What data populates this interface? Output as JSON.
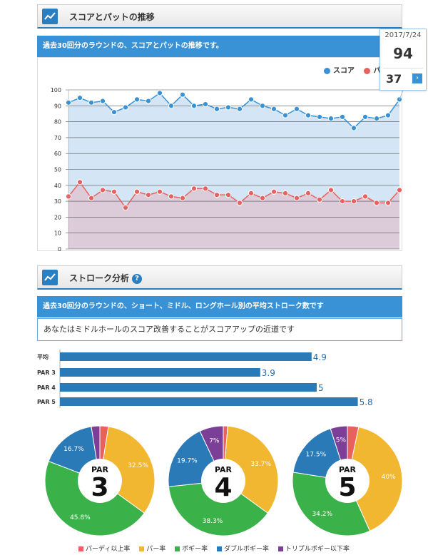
{
  "section1": {
    "title": "スコアとパットの推移",
    "description": "過去30回分のラウンドの、スコアとパットの推移です。"
  },
  "section2": {
    "title": "ストローク分析",
    "help": "?",
    "description": "過去30回分のラウンドの、ショート、ミドル、ロングホール別の平均ストローク数です",
    "message": "あなたはミドルホールのスコア改善することがスコアアップの近道です"
  },
  "tooltip": {
    "date": "2017/7/24",
    "score": "94",
    "putt": "37",
    "arrow": "›"
  },
  "colors": {
    "score": "#3a92d6",
    "putt": "#e8615f",
    "bar": "#2a7ab8",
    "birdie": "#e8615f",
    "par": "#f2b730",
    "bogey": "#3bb14a",
    "double": "#2a7ab8",
    "triple": "#7b3f98"
  },
  "pie_legend": [
    "パーディ以上率",
    "パー率",
    "ボギー率",
    "ダブルボギー率",
    "トリプルボギー以下率"
  ],
  "chart_data": [
    {
      "type": "line",
      "legend": [
        "スコア",
        "パ"
      ],
      "yticks": [
        "0",
        "10",
        "20",
        "30",
        "40",
        "50",
        "60",
        "70",
        "80",
        "90",
        "100"
      ],
      "ylim": [
        0,
        100
      ],
      "series": [
        {
          "name": "スコア",
          "values": [
            92,
            95,
            92,
            93,
            86,
            89,
            94,
            93,
            98,
            90,
            97,
            90,
            91,
            88,
            89,
            88,
            94,
            90,
            88,
            84,
            88,
            84,
            83,
            82,
            83,
            76,
            83,
            82,
            84,
            94
          ]
        },
        {
          "name": "パ",
          "values": [
            33,
            42,
            32,
            37,
            36,
            26,
            36,
            34,
            36,
            33,
            32,
            38,
            38,
            34,
            34,
            29,
            35,
            32,
            36,
            35,
            32,
            35,
            31,
            37,
            30,
            30,
            33,
            29,
            29,
            37
          ]
        }
      ]
    },
    {
      "type": "bar",
      "categories": [
        "平均",
        "PAR 3",
        "PAR 4",
        "PAR 5"
      ],
      "values": [
        4.9,
        3.9,
        5,
        5.8
      ],
      "labels": [
        "4.9",
        "3.9",
        "5",
        "5.8"
      ],
      "xlim": [
        0,
        6
      ]
    },
    {
      "type": "pie",
      "center_top": "PAR",
      "center_big": "3",
      "values": [
        2.5,
        32.5,
        45.8,
        16.7,
        2.5
      ],
      "labels": [
        "",
        "32.5%",
        "45.8%",
        "16.7%",
        ""
      ]
    },
    {
      "type": "pie",
      "center_top": "PAR",
      "center_big": "4",
      "values": [
        1.3,
        33.7,
        38.3,
        19.7,
        7
      ],
      "labels": [
        "",
        "33.7%",
        "38.3%",
        "19.7%",
        "7%"
      ]
    },
    {
      "type": "pie",
      "center_top": "PAR",
      "center_big": "5",
      "values": [
        3.3,
        40,
        34.2,
        17.5,
        5
      ],
      "labels": [
        "",
        "40%",
        "34.2%",
        "17.5%",
        "5%"
      ]
    }
  ]
}
